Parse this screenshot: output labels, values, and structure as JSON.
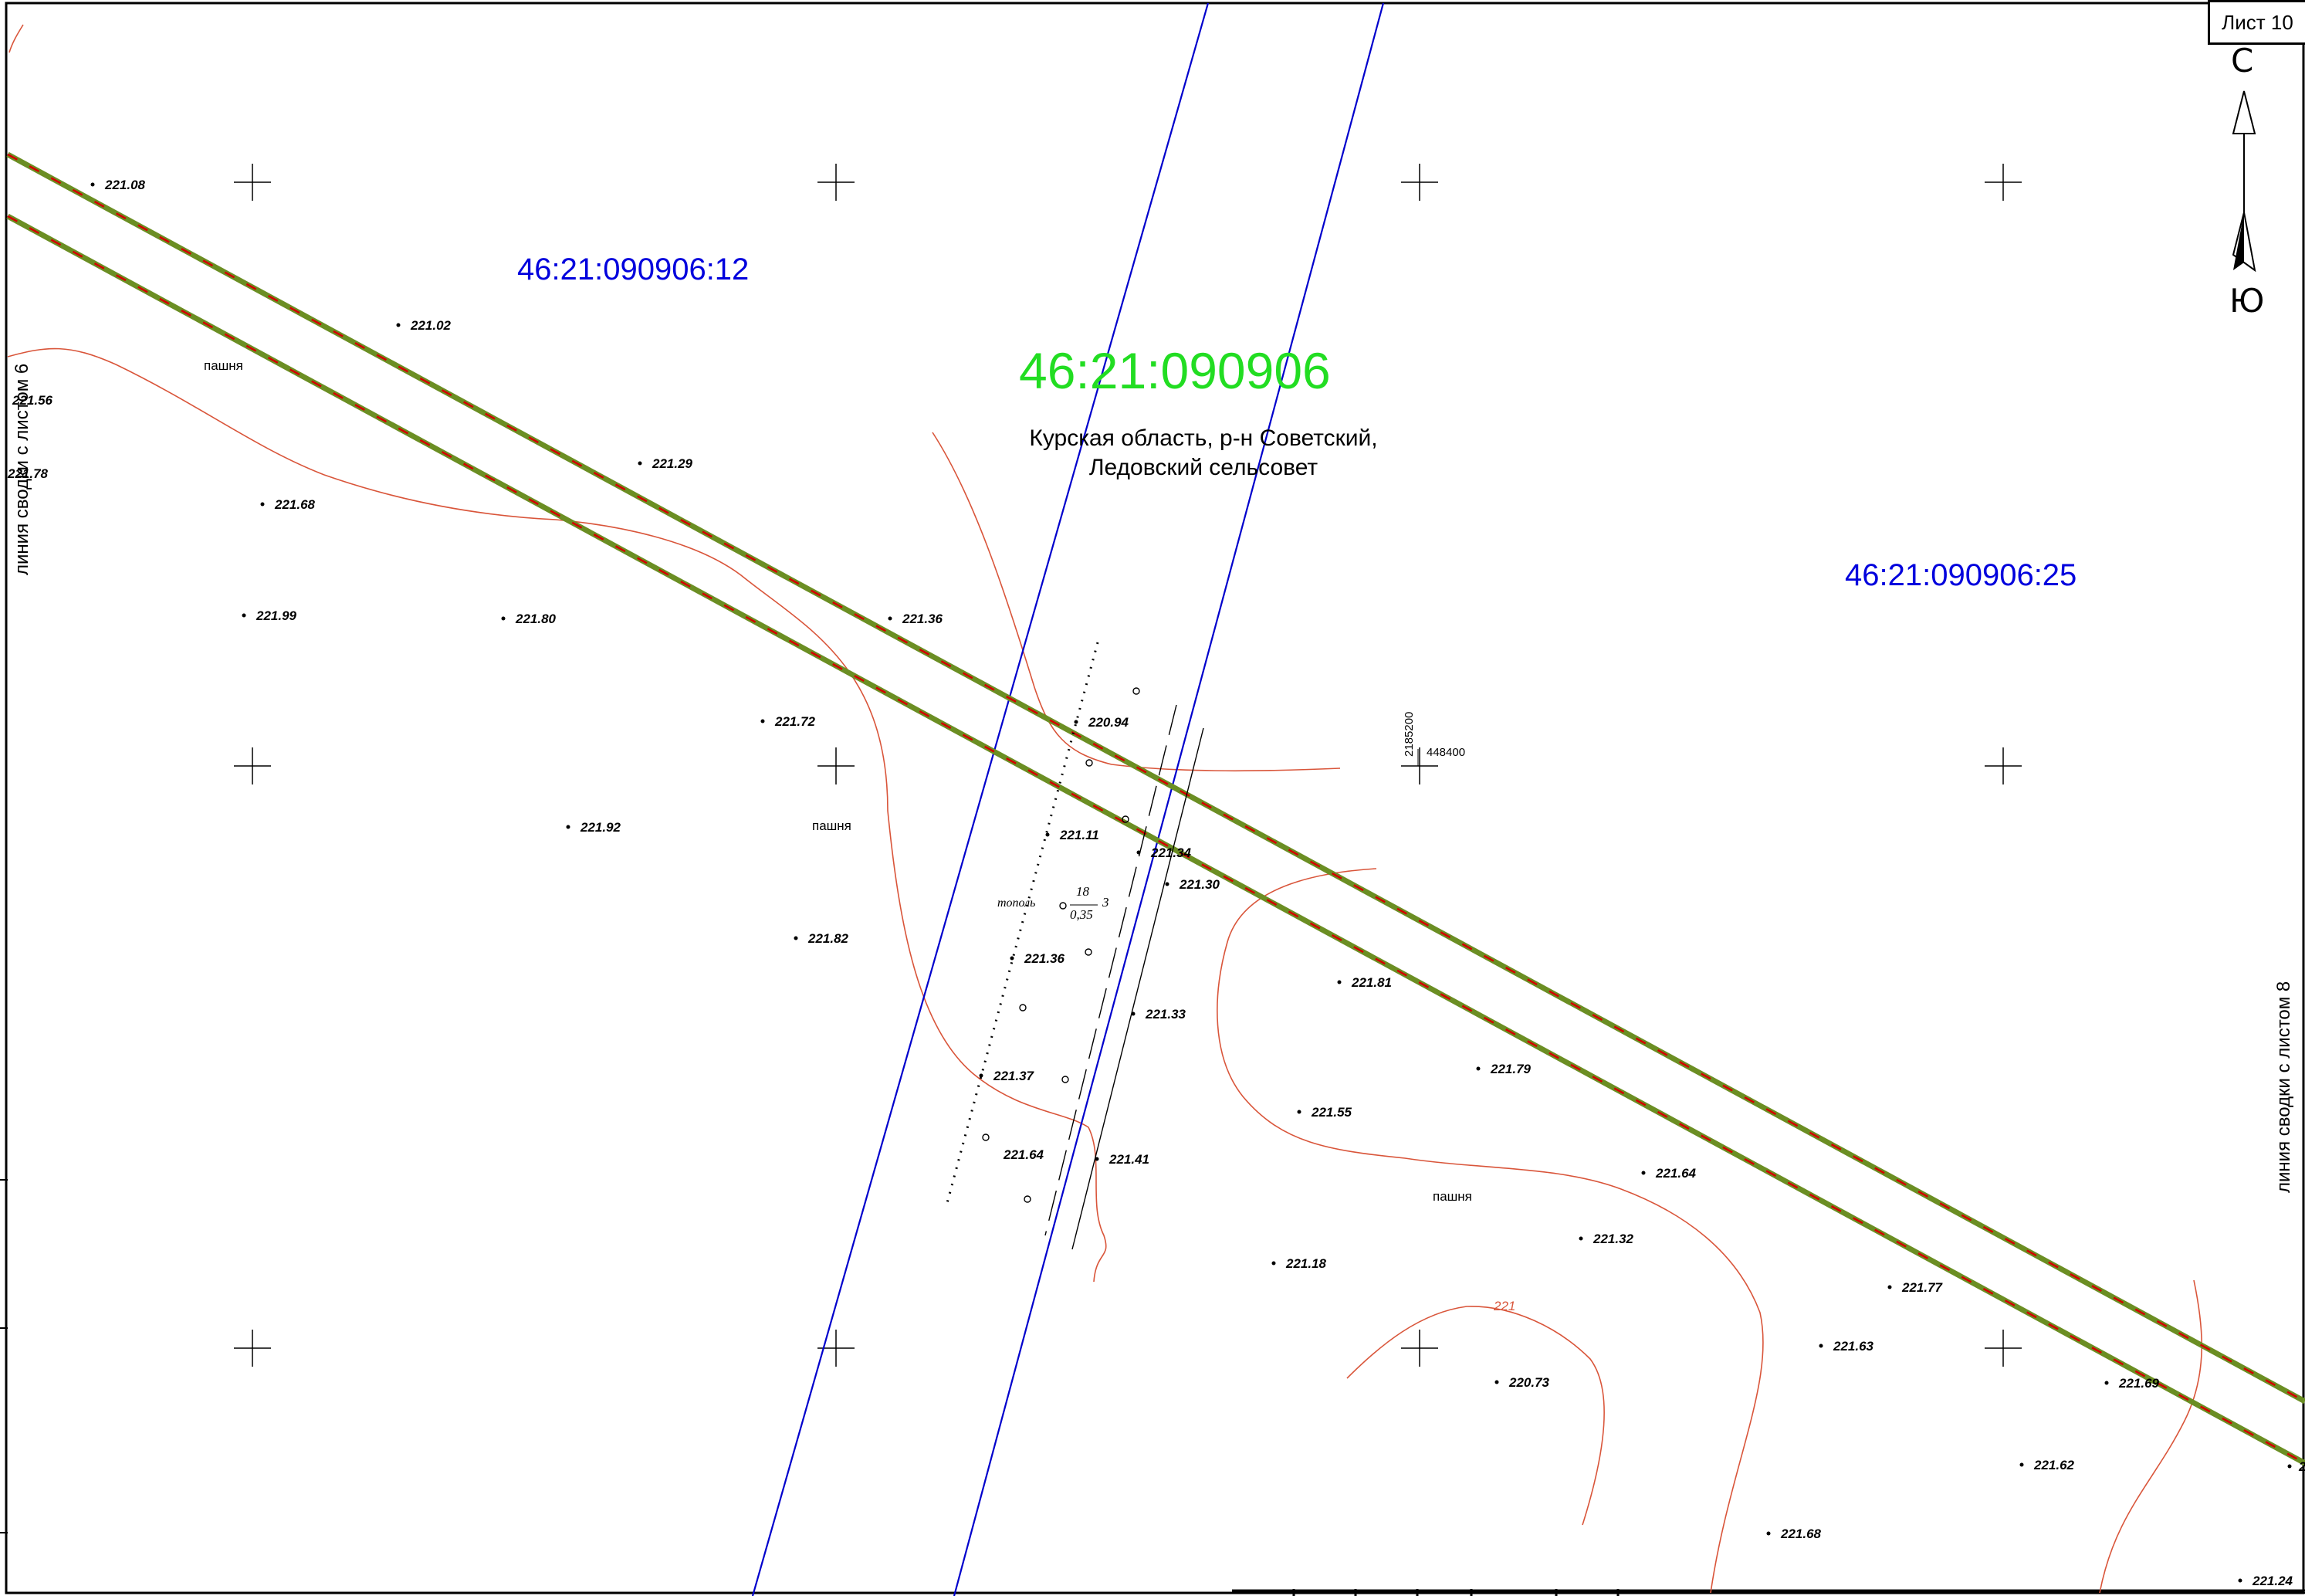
{
  "sheet_label": "Лист 10",
  "north_arrow": {
    "north": "С",
    "south": "Ю"
  },
  "side_labels": {
    "left": "линия сводки с листом 6",
    "right": "линия сводки с листом 8"
  },
  "quarter_number": "46:21:090906",
  "address": {
    "line1": "Курская область, р-н Советский,",
    "line2": "Ледовский сельсовет"
  },
  "parcels": [
    "46:21:090906:12",
    "46:21:090906:25"
  ],
  "grid": {
    "x": "2185200",
    "y": "448400"
  },
  "land_use": [
    "пашня",
    "пашня",
    "пашня"
  ],
  "tree": {
    "species": "тополь",
    "height": "18",
    "diameter": "0,35",
    "count": "3"
  },
  "contour_label": "221",
  "elevations": [
    "221.08",
    "221.02",
    "221.56",
    "221.78",
    "221.29",
    "221.68",
    "221.99",
    "221.80",
    "221.36",
    "221.72",
    "220.94",
    "221.92",
    "221.11",
    "221.34",
    "221.30",
    "221.82",
    "221.36",
    "221.33",
    "221.81",
    "221.37",
    "221.79",
    "221.55",
    "221.64",
    "221.41",
    "221.64",
    "221.32",
    "221.18",
    "221.77",
    "221.63",
    "220.73",
    "221.69",
    "221.62",
    "221.68",
    "221.24",
    "2"
  ],
  "colors": {
    "road_edge": "#d40000",
    "road_fill": "#6b8e23",
    "parcel_line": "#0000cc",
    "contour": "#d9553a",
    "quarter": "#22dd22",
    "parcel_label": "#0000dd"
  }
}
